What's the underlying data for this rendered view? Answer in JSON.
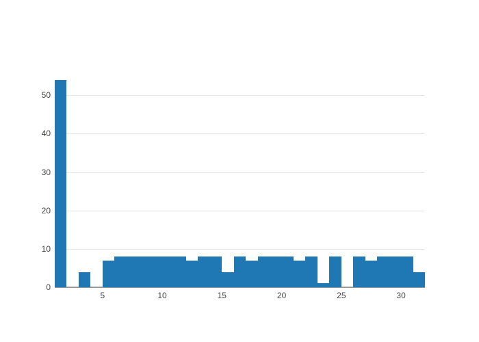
{
  "chart_data": {
    "type": "bar",
    "subtype": "histogram",
    "title": "",
    "xlabel": "",
    "ylabel": "",
    "x": [
      1,
      2,
      3,
      4,
      5,
      6,
      7,
      8,
      9,
      10,
      11,
      12,
      13,
      14,
      15,
      16,
      17,
      18,
      19,
      20,
      21,
      22,
      23,
      24,
      25,
      26,
      27,
      28,
      29,
      30,
      31
    ],
    "values": [
      54,
      0,
      4,
      0,
      7,
      8,
      8,
      8,
      8,
      8,
      8,
      7,
      8,
      8,
      4,
      8,
      7,
      8,
      8,
      8,
      7,
      8,
      1,
      8,
      0,
      8,
      7,
      8,
      8,
      8,
      4
    ],
    "bin_width": 1,
    "xticks": [
      5,
      10,
      15,
      20,
      25,
      30
    ],
    "yticks": [
      0,
      10,
      20,
      30,
      40,
      50
    ],
    "xlim": [
      1,
      32
    ],
    "ylim": [
      0,
      57
    ],
    "grid": "horizontal",
    "legend_position": "none",
    "colors": {
      "bar": "#1f77b4",
      "gridline": "#e5e5e5",
      "zeroline": "#9a9a9a",
      "tick_label": "#444444",
      "background": "#ffffff"
    }
  }
}
